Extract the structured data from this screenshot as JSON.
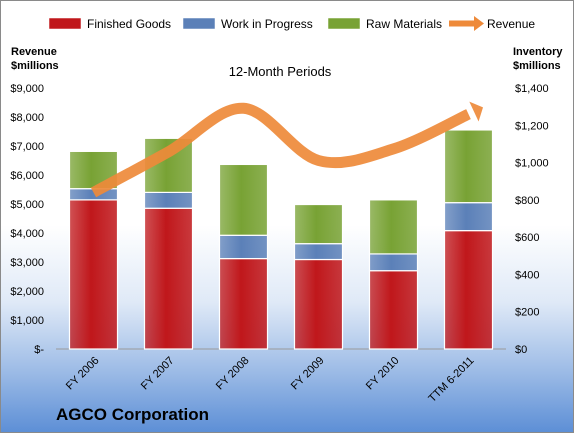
{
  "company": "AGCO Corporation",
  "chart_data": {
    "type": "bar",
    "subtype": "stacked-bar-with-line",
    "title": "12-Month Periods",
    "categories": [
      "FY 2006",
      "FY 2007",
      "FY 2008",
      "FY 2009",
      "FY 2010",
      "TTM 6-2011"
    ],
    "left_axis": {
      "label_line1": "Revenue",
      "label_line2": "$millions",
      "ylim": [
        0,
        9000
      ],
      "ticks": [
        "$-",
        "$1,000",
        "$2,000",
        "$3,000",
        "$4,000",
        "$5,000",
        "$6,000",
        "$7,000",
        "$8,000",
        "$9,000"
      ]
    },
    "right_axis": {
      "label_line1": "Inventory",
      "label_line2": "$millions",
      "ylim": [
        0,
        1400
      ],
      "ticks": [
        "$0",
        "$200",
        "$400",
        "$600",
        "$800",
        "$1,000",
        "$1,200",
        "$1,400"
      ]
    },
    "series": [
      {
        "name": "Finished Goods",
        "axis": "right",
        "type": "bar",
        "color": "#c0171b",
        "values": [
          800,
          755,
          485,
          480,
          420,
          635
        ]
      },
      {
        "name": "Work in Progress",
        "axis": "right",
        "type": "bar",
        "color": "#5b80b8",
        "values": [
          60,
          85,
          125,
          85,
          90,
          150
        ]
      },
      {
        "name": "Raw Materials",
        "axis": "right",
        "type": "bar",
        "color": "#78a234",
        "values": [
          200,
          290,
          380,
          210,
          290,
          390
        ]
      },
      {
        "name": "Revenue",
        "axis": "left",
        "type": "line",
        "color": "#ee8a3a",
        "values": [
          5400,
          6800,
          8300,
          6500,
          6900,
          8100
        ]
      }
    ],
    "legend": {
      "position": "top"
    },
    "grid": false
  }
}
